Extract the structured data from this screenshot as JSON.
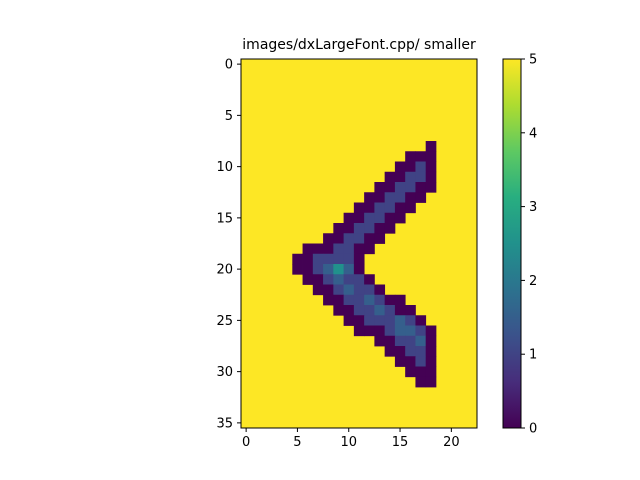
{
  "chart_data": {
    "type": "heatmap",
    "title": "images/dxLargeFont.cpp/ smaller",
    "xlabel": "",
    "ylabel": "",
    "xlim": [
      -0.5,
      22.5
    ],
    "ylim": [
      35.5,
      -0.5
    ],
    "origin": "upper",
    "grid": false,
    "colormap": "viridis",
    "x_ticks": [
      "0",
      "5",
      "10",
      "15",
      "20"
    ],
    "y_ticks": [
      "0",
      "5",
      "10",
      "15",
      "20",
      "25",
      "30",
      "35"
    ],
    "colorbar": {
      "min": 0,
      "max": 5,
      "ticks": [
        "0",
        "1",
        "2",
        "3",
        "4",
        "5"
      ]
    },
    "background_value": 5,
    "rows": [
      {
        "y": 8,
        "cells": [
          [
            18,
            0
          ]
        ]
      },
      {
        "y": 9,
        "cells": [
          [
            16,
            0
          ],
          [
            17,
            0
          ],
          [
            18,
            0
          ]
        ]
      },
      {
        "y": 10,
        "cells": [
          [
            15,
            0
          ],
          [
            16,
            0
          ],
          [
            17,
            1
          ],
          [
            18,
            0
          ]
        ]
      },
      {
        "y": 11,
        "cells": [
          [
            14,
            0
          ],
          [
            15,
            0
          ],
          [
            16,
            1
          ],
          [
            17,
            1
          ],
          [
            18,
            0
          ]
        ]
      },
      {
        "y": 12,
        "cells": [
          [
            13,
            0
          ],
          [
            14,
            0
          ],
          [
            15,
            1
          ],
          [
            16,
            1
          ],
          [
            17,
            0
          ],
          [
            18,
            0
          ]
        ]
      },
      {
        "y": 13,
        "cells": [
          [
            12,
            0
          ],
          [
            13,
            0
          ],
          [
            14,
            1
          ],
          [
            15,
            1
          ],
          [
            16,
            0
          ],
          [
            17,
            0
          ]
        ]
      },
      {
        "y": 14,
        "cells": [
          [
            11,
            0
          ],
          [
            12,
            0
          ],
          [
            13,
            1
          ],
          [
            14,
            1
          ],
          [
            15,
            0
          ],
          [
            16,
            0
          ]
        ]
      },
      {
        "y": 15,
        "cells": [
          [
            10,
            0
          ],
          [
            11,
            0
          ],
          [
            12,
            1
          ],
          [
            13,
            1
          ],
          [
            14,
            0
          ],
          [
            15,
            0
          ]
        ]
      },
      {
        "y": 16,
        "cells": [
          [
            9,
            0
          ],
          [
            10,
            0
          ],
          [
            11,
            1
          ],
          [
            12,
            1
          ],
          [
            13,
            0
          ],
          [
            14,
            0
          ]
        ]
      },
      {
        "y": 17,
        "cells": [
          [
            8,
            0
          ],
          [
            9,
            0
          ],
          [
            10,
            1
          ],
          [
            11,
            1
          ],
          [
            12,
            0
          ],
          [
            13,
            0
          ]
        ]
      },
      {
        "y": 18,
        "cells": [
          [
            6,
            0
          ],
          [
            7,
            0
          ],
          [
            8,
            0
          ],
          [
            9,
            1
          ],
          [
            10,
            1
          ],
          [
            11,
            0
          ],
          [
            12,
            0
          ]
        ]
      },
      {
        "y": 19,
        "cells": [
          [
            5,
            0
          ],
          [
            6,
            0
          ],
          [
            7,
            1
          ],
          [
            8,
            1
          ],
          [
            9,
            1
          ],
          [
            10,
            1
          ],
          [
            11,
            0
          ]
        ]
      },
      {
        "y": 20,
        "cells": [
          [
            5,
            0
          ],
          [
            6,
            0
          ],
          [
            7,
            1
          ],
          [
            8,
            1.5
          ],
          [
            9,
            2.5
          ],
          [
            10,
            1.5
          ],
          [
            11,
            0
          ]
        ]
      },
      {
        "y": 21,
        "cells": [
          [
            6,
            0
          ],
          [
            7,
            0
          ],
          [
            8,
            1
          ],
          [
            9,
            1.5
          ],
          [
            10,
            1
          ],
          [
            11,
            1
          ],
          [
            12,
            0
          ]
        ]
      },
      {
        "y": 22,
        "cells": [
          [
            7,
            0
          ],
          [
            8,
            0
          ],
          [
            9,
            1
          ],
          [
            10,
            1.5
          ],
          [
            11,
            1
          ],
          [
            12,
            1
          ],
          [
            13,
            0
          ]
        ]
      },
      {
        "y": 23,
        "cells": [
          [
            8,
            0
          ],
          [
            9,
            0
          ],
          [
            10,
            1
          ],
          [
            11,
            1
          ],
          [
            12,
            1.5
          ],
          [
            13,
            1
          ],
          [
            14,
            0
          ],
          [
            15,
            0
          ]
        ]
      },
      {
        "y": 24,
        "cells": [
          [
            9,
            0
          ],
          [
            10,
            0
          ],
          [
            11,
            1
          ],
          [
            12,
            1
          ],
          [
            13,
            1.5
          ],
          [
            14,
            1
          ],
          [
            15,
            0
          ],
          [
            16,
            0
          ]
        ]
      },
      {
        "y": 25,
        "cells": [
          [
            10,
            0
          ],
          [
            11,
            0
          ],
          [
            12,
            1
          ],
          [
            13,
            1
          ],
          [
            14,
            1
          ],
          [
            15,
            1.5
          ],
          [
            16,
            1
          ],
          [
            17,
            0
          ]
        ]
      },
      {
        "y": 26,
        "cells": [
          [
            11,
            0
          ],
          [
            12,
            0
          ],
          [
            13,
            0
          ],
          [
            14,
            1
          ],
          [
            15,
            1.5
          ],
          [
            16,
            1.5
          ],
          [
            17,
            1
          ],
          [
            18,
            0
          ]
        ]
      },
      {
        "y": 27,
        "cells": [
          [
            13,
            0
          ],
          [
            14,
            0
          ],
          [
            15,
            1
          ],
          [
            16,
            1
          ],
          [
            17,
            1.5
          ],
          [
            18,
            0
          ]
        ]
      },
      {
        "y": 28,
        "cells": [
          [
            14,
            0
          ],
          [
            15,
            0
          ],
          [
            16,
            1
          ],
          [
            17,
            1
          ],
          [
            18,
            0
          ]
        ]
      },
      {
        "y": 29,
        "cells": [
          [
            15,
            0
          ],
          [
            16,
            0
          ],
          [
            17,
            1
          ],
          [
            18,
            0
          ]
        ]
      },
      {
        "y": 30,
        "cells": [
          [
            16,
            0
          ],
          [
            17,
            0
          ],
          [
            18,
            0
          ]
        ]
      },
      {
        "y": 31,
        "cells": [
          [
            17,
            0
          ],
          [
            18,
            0
          ]
        ]
      }
    ]
  }
}
